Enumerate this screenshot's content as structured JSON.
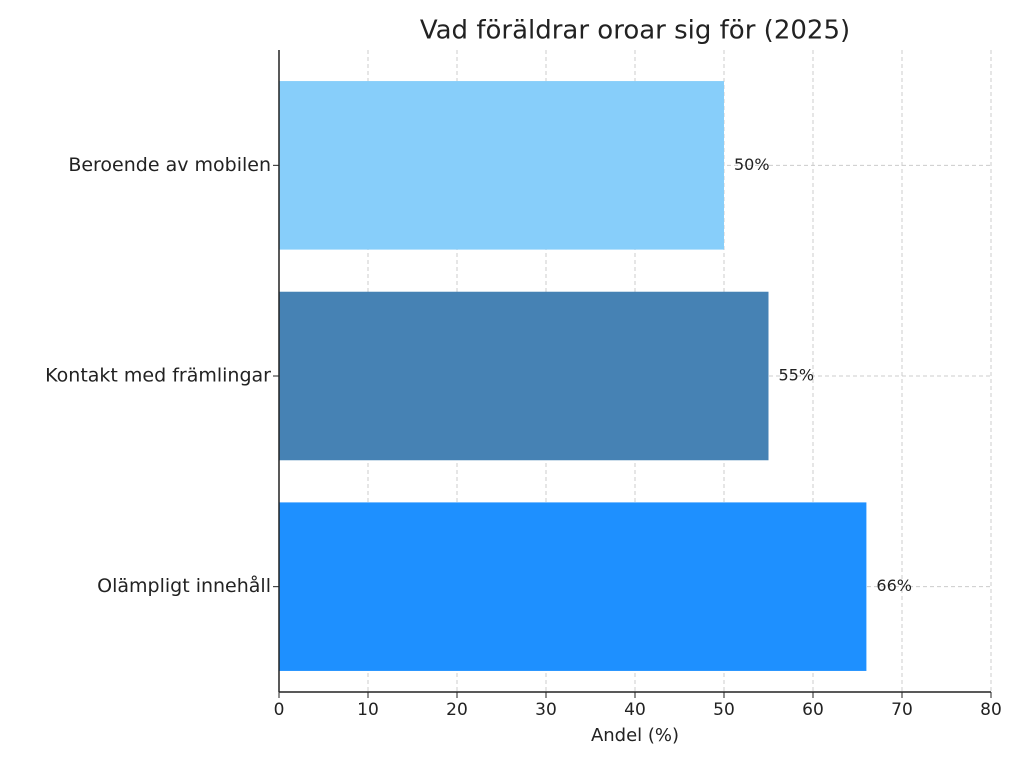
{
  "chart_data": {
    "type": "barh",
    "title": "Vad föräldrar oroar sig för (2025)",
    "xlabel": "Andel (%)",
    "categories": [
      "Beroende av mobilen",
      "Kontakt med främlingar",
      "Olämpligt innehåll"
    ],
    "values": [
      50,
      55,
      66
    ],
    "value_labels": [
      "50%",
      "55%",
      "66%"
    ],
    "colors": [
      "#87cefa",
      "#4682b4",
      "#1e90ff"
    ],
    "xlim": [
      0,
      80
    ],
    "xticks": [
      0,
      10,
      20,
      30,
      40,
      50,
      60,
      70,
      80
    ],
    "grid": true
  }
}
